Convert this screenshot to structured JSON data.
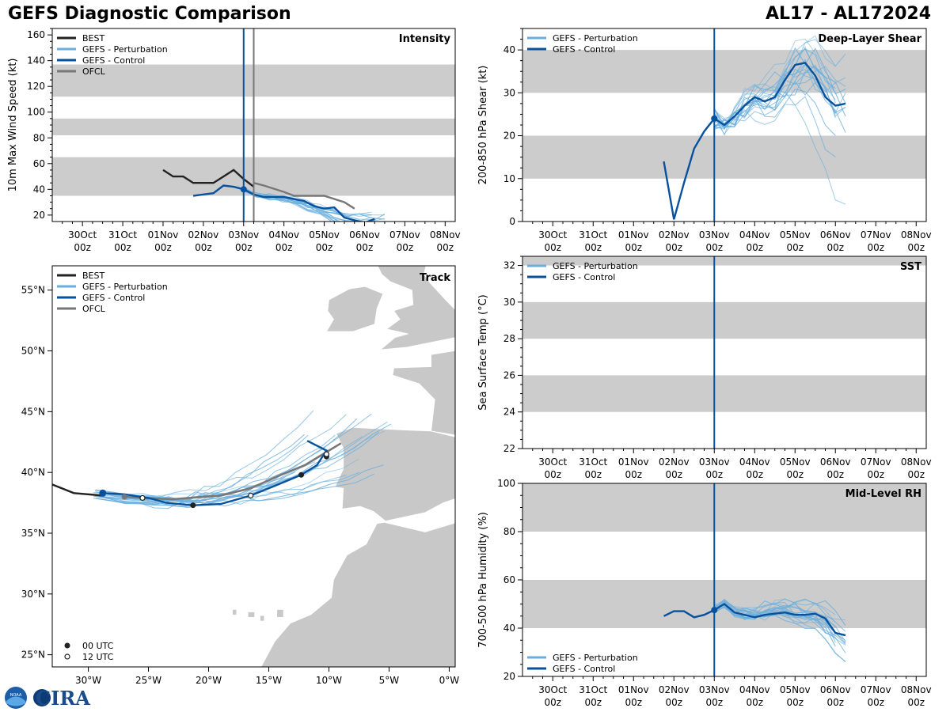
{
  "header": {
    "title": "GEFS Diagnostic Comparison",
    "storm": "AL17 - AL172024"
  },
  "logo": {
    "noaa_text": "NOAA",
    "cira_text": "CIRA"
  },
  "legend_labels": {
    "best": "BEST",
    "perturbation": "GEFS - Perturbation",
    "control": "GEFS - Control",
    "ofcl": "OFCL",
    "utc00": "00 UTC",
    "utc12": "12 UTC"
  },
  "colors": {
    "best": "#222222",
    "perturbation": "#6aaedc",
    "control": "#08519c",
    "ofcl": "#777777",
    "band": "#cccccc",
    "land": "#c8c8c8",
    "init_line": "#08519c",
    "ofcl_line": "#777777"
  },
  "time_axis": {
    "labels": [
      [
        "30Oct",
        "00z"
      ],
      [
        "31Oct",
        "00z"
      ],
      [
        "01Nov",
        "00z"
      ],
      [
        "02Nov",
        "00z"
      ],
      [
        "03Nov",
        "00z"
      ],
      [
        "04Nov",
        "00z"
      ],
      [
        "05Nov",
        "00z"
      ],
      [
        "06Nov",
        "00z"
      ],
      [
        "07Nov",
        "00z"
      ],
      [
        "08Nov",
        "00z"
      ]
    ],
    "tick_days": [
      0,
      1,
      2,
      3,
      4,
      5,
      6,
      7,
      8,
      9
    ],
    "xlim": [
      -0.75,
      9.25
    ],
    "init_day": 4.0,
    "ofcl_day": 4.25
  },
  "chart_data": [
    {
      "id": "intensity",
      "type": "line",
      "title": "Intensity",
      "ylabel": "10m Max Wind Speed (kt)",
      "ylim": [
        15,
        165
      ],
      "yticks": [
        20,
        40,
        60,
        80,
        100,
        120,
        140,
        160
      ],
      "bands": [
        [
          35,
          65
        ],
        [
          82,
          95
        ],
        [
          112,
          137
        ]
      ],
      "legend": [
        "best",
        "perturbation",
        "control",
        "ofcl"
      ],
      "series": [
        {
          "name": "BEST",
          "x": [
            2.0,
            2.25,
            2.5,
            2.75,
            3.0,
            3.25,
            3.5,
            3.75,
            4.0,
            4.25
          ],
          "y": [
            55,
            50,
            50,
            45,
            45,
            45,
            50,
            55,
            48,
            42
          ]
        },
        {
          "name": "GEFS - Control",
          "x": [
            2.75,
            3.25,
            3.5,
            3.75,
            4.0,
            4.25,
            4.5,
            5.0,
            5.5,
            5.75,
            6.0,
            6.25,
            6.5,
            6.75,
            7.0,
            7.25
          ],
          "y": [
            35,
            37,
            43,
            42,
            40,
            36,
            34,
            34,
            31,
            27,
            25,
            26,
            18,
            16,
            14,
            17
          ]
        },
        {
          "name": "OFCL",
          "x": [
            4.25,
            4.5,
            5.0,
            5.25,
            5.5,
            6.0,
            6.5,
            6.75
          ],
          "y": [
            45,
            43,
            38,
            35,
            35,
            35,
            30,
            25
          ]
        }
      ],
      "perturbation": {
        "x_start": 4.0,
        "x_end": 7.5,
        "center": [
          40,
          36,
          34,
          33,
          31,
          27,
          24,
          20,
          16,
          14,
          13,
          15
        ],
        "count": 18,
        "spread": 4
      }
    },
    {
      "id": "shear",
      "type": "line",
      "title": "Deep-Layer Shear",
      "ylabel": "200-850 hPa Shear (kt)",
      "ylim": [
        0,
        45
      ],
      "yticks": [
        0,
        10,
        20,
        30,
        40
      ],
      "bands": [
        [
          10,
          20
        ],
        [
          30,
          40
        ]
      ],
      "legend": [
        "perturbation",
        "control"
      ],
      "series": [
        {
          "name": "GEFS - Control",
          "x": [
            2.75,
            3.0,
            3.25,
            3.5,
            3.75,
            4.0,
            4.25,
            4.5,
            4.75,
            5.0,
            5.25,
            5.5,
            5.75,
            6.0,
            6.25,
            6.5,
            6.75,
            7.0,
            7.25
          ],
          "y": [
            14,
            0.5,
            9,
            17,
            21,
            24,
            22.5,
            24.5,
            27,
            29,
            28,
            29,
            33,
            36.5,
            37,
            34,
            29,
            27,
            27.5
          ]
        }
      ],
      "perturbation": {
        "x_start": 4.0,
        "x_end": 7.25,
        "center": [
          24,
          22,
          24,
          27,
          29,
          29,
          30,
          33,
          35,
          36,
          34,
          31,
          28,
          28
        ],
        "count": 20,
        "spread": 5
      }
    },
    {
      "id": "sst",
      "type": "line",
      "title": "SST",
      "ylabel": "Sea Surface Temp (°C)",
      "ylim": [
        22,
        32.5
      ],
      "yticks": [
        22,
        24,
        26,
        28,
        30,
        32
      ],
      "bands": [
        [
          24,
          26
        ],
        [
          28,
          30
        ],
        [
          32,
          32.5
        ]
      ],
      "legend": [
        "perturbation",
        "control"
      ],
      "series": []
    },
    {
      "id": "rh",
      "type": "line",
      "title": "Mid-Level RH",
      "ylabel": "700-500 hPa Humidity (%)",
      "ylim": [
        20,
        100
      ],
      "yticks": [
        20,
        40,
        60,
        80,
        100
      ],
      "bands": [
        [
          40,
          60
        ],
        [
          80,
          100
        ]
      ],
      "legend": [
        "perturbation",
        "control"
      ],
      "series": [
        {
          "name": "GEFS - Control",
          "x": [
            2.75,
            3.0,
            3.25,
            3.5,
            3.75,
            4.0,
            4.25,
            4.5,
            5.0,
            5.25,
            5.5,
            5.75,
            6.0,
            6.25,
            6.5,
            6.75,
            7.0,
            7.25
          ],
          "y": [
            45,
            47,
            47,
            44.5,
            45.5,
            47.5,
            50,
            46.5,
            44.5,
            45.5,
            46,
            46.5,
            45.5,
            45.5,
            46,
            44,
            38,
            37
          ]
        }
      ],
      "perturbation": {
        "x_start": 4.0,
        "x_end": 7.25,
        "center": [
          48,
          50,
          47,
          46,
          46,
          47,
          48,
          48,
          47,
          46,
          45,
          42,
          38,
          35
        ],
        "count": 20,
        "spread": 4
      }
    },
    {
      "id": "track",
      "type": "scatter",
      "title": "Track",
      "xlim": [
        -33,
        0.5
      ],
      "ylim": [
        24,
        57
      ],
      "xticks": [
        -30,
        -25,
        -20,
        -15,
        -10,
        -5,
        0
      ],
      "xticklabels": [
        "30°W",
        "25°W",
        "20°W",
        "15°W",
        "10°W",
        "5°W",
        "0°W"
      ],
      "yticks": [
        25,
        30,
        35,
        40,
        45,
        50,
        55
      ],
      "yticklabels": [
        "25°N",
        "30°N",
        "35°N",
        "40°N",
        "45°N",
        "50°N",
        "55°N"
      ],
      "legend": [
        "best",
        "perturbation",
        "control",
        "ofcl"
      ],
      "best_track": [
        [
          -34,
          39.4
        ],
        [
          -31.2,
          38.3
        ],
        [
          -28.8,
          38.1
        ]
      ],
      "control_track": [
        [
          -28.8,
          38.3
        ],
        [
          -27,
          38.2
        ],
        [
          -25,
          37.9
        ],
        [
          -23.5,
          37.5
        ],
        [
          -21.3,
          37.3
        ],
        [
          -19,
          37.4
        ],
        [
          -16.5,
          38.1
        ],
        [
          -14.5,
          38.9
        ],
        [
          -12.3,
          39.8
        ],
        [
          -11,
          40.6
        ],
        [
          -10.2,
          41.8
        ],
        [
          -11.8,
          42.6
        ]
      ],
      "ofcl_track": [
        [
          -27,
          38.0
        ],
        [
          -25.5,
          37.9
        ],
        [
          -23,
          37.8
        ],
        [
          -19,
          38.1
        ],
        [
          -16.5,
          38.7
        ],
        [
          -14,
          39.8
        ],
        [
          -12,
          40.6
        ],
        [
          -10.5,
          41.5
        ],
        [
          -9,
          42.4
        ]
      ],
      "points_00utc": [
        [
          -28.8,
          38.3
        ],
        [
          -21.3,
          37.3
        ],
        [
          -12.3,
          39.8
        ],
        [
          -10.2,
          41.3
        ]
      ],
      "points_12utc": [
        [
          -25.5,
          37.9
        ],
        [
          -16.5,
          38.1
        ],
        [
          -10.2,
          41.5
        ]
      ],
      "ofcl_points": [
        [
          -27,
          38.0
        ]
      ]
    }
  ]
}
